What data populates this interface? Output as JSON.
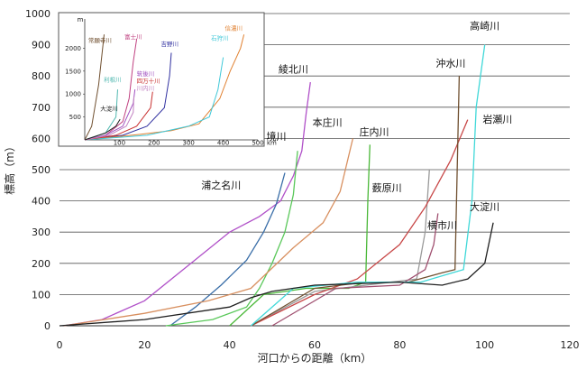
{
  "chart_data": [
    {
      "type": "line",
      "xlabel": "河口からの距離（km）",
      "ylabel": "標高（m）",
      "xlim": [
        0,
        120
      ],
      "ylim": [
        0,
        1000
      ],
      "xticks": [
        0,
        20,
        40,
        60,
        80,
        100,
        120
      ],
      "yticks": [
        0,
        100,
        200,
        300,
        400,
        500,
        600,
        700,
        800,
        900,
        1000
      ],
      "grid": "horizontal",
      "series": [
        {
          "name": "綾北川",
          "color": "#b050c8",
          "points": [
            [
              1,
              0
            ],
            [
              10,
              20
            ],
            [
              20,
              80
            ],
            [
              30,
              190
            ],
            [
              40,
              300
            ],
            [
              47,
              350
            ],
            [
              52,
              400
            ],
            [
              55,
              480
            ],
            [
              57,
              560
            ],
            [
              58,
              680
            ],
            [
              59,
              780
            ]
          ]
        },
        {
          "name": "浦之名川",
          "color": "#3a6ea8",
          "points": [
            [
              26,
              0
            ],
            [
              32,
              60
            ],
            [
              38,
              130
            ],
            [
              44,
              210
            ],
            [
              48,
              300
            ],
            [
              51,
              390
            ],
            [
              53,
              490
            ]
          ]
        },
        {
          "name": "境川",
          "color": "#5ac85a",
          "points": [
            [
              25,
              0
            ],
            [
              36,
              20
            ],
            [
              44,
              60
            ],
            [
              47,
              120
            ],
            [
              50,
              200
            ],
            [
              53,
              300
            ],
            [
              55,
              420
            ],
            [
              56,
              560
            ]
          ]
        },
        {
          "name": "本庄川",
          "color": "#d89060",
          "points": [
            [
              1,
              0
            ],
            [
              20,
              40
            ],
            [
              35,
              80
            ],
            [
              45,
              120
            ],
            [
              55,
              250
            ],
            [
              62,
              330
            ],
            [
              66,
              430
            ],
            [
              69,
              600
            ]
          ]
        },
        {
          "name": "庄内川",
          "color": "#4ab838",
          "points": [
            [
              40,
              0
            ],
            [
              48,
              100
            ],
            [
              58,
              120
            ],
            [
              68,
              120
            ],
            [
              72,
              140
            ],
            [
              72.5,
              400
            ],
            [
              73,
              580
            ]
          ]
        },
        {
          "name": "薮原川",
          "color": "#9a9a9a",
          "points": [
            [
              45,
              0
            ],
            [
              60,
              110
            ],
            [
              75,
              135
            ],
            [
              84,
              150
            ],
            [
              86,
              300
            ],
            [
              87,
              500
            ]
          ]
        },
        {
          "name": "横市川",
          "color": "#a05070",
          "points": [
            [
              50,
              0
            ],
            [
              65,
              120
            ],
            [
              80,
              130
            ],
            [
              86,
              180
            ],
            [
              88,
              260
            ],
            [
              89,
              360
            ]
          ]
        },
        {
          "name": "岩瀬川",
          "color": "#c84848",
          "points": [
            [
              45,
              0
            ],
            [
              60,
              100
            ],
            [
              70,
              150
            ],
            [
              80,
              260
            ],
            [
              86,
              380
            ],
            [
              92,
              530
            ],
            [
              96,
              660
            ]
          ]
        },
        {
          "name": "沖水川",
          "color": "#705030",
          "points": [
            [
              45,
              0
            ],
            [
              60,
              120
            ],
            [
              72,
              140
            ],
            [
              82,
              140
            ],
            [
              90,
              170
            ],
            [
              93,
              180
            ],
            [
              94,
              800
            ]
          ]
        },
        {
          "name": "高崎川",
          "color": "#40d8d8",
          "points": [
            [
              45,
              0
            ],
            [
              55,
              120
            ],
            [
              70,
              140
            ],
            [
              85,
              140
            ],
            [
              95,
              180
            ],
            [
              97,
              400
            ],
            [
              98,
              700
            ],
            [
              100,
              900
            ]
          ]
        },
        {
          "name": "大淀川",
          "color": "#202020",
          "points": [
            [
              0,
              0
            ],
            [
              20,
              20
            ],
            [
              40,
              60
            ],
            [
              45,
              90
            ],
            [
              50,
              110
            ],
            [
              60,
              130
            ],
            [
              80,
              140
            ],
            [
              90,
              130
            ],
            [
              96,
              150
            ],
            [
              100,
              200
            ],
            [
              102,
              330
            ]
          ]
        }
      ],
      "labels": [
        {
          "text": "高崎川",
          "x": 100,
          "y": 950
        },
        {
          "text": "沖水川",
          "x": 92,
          "y": 830
        },
        {
          "text": "綾北川",
          "x": 55,
          "y": 810
        },
        {
          "text": "岩瀬川",
          "x": 103,
          "y": 650
        },
        {
          "text": "本庄川",
          "x": 63,
          "y": 640
        },
        {
          "text": "庄内川",
          "x": 74,
          "y": 610
        },
        {
          "text": "境川",
          "x": 51,
          "y": 595
        },
        {
          "text": "浦之名川",
          "x": 38,
          "y": 440
        },
        {
          "text": "薮原川",
          "x": 77,
          "y": 430
        },
        {
          "text": "大淀川",
          "x": 100,
          "y": 370
        },
        {
          "text": "横市川",
          "x": 90,
          "y": 310
        }
      ]
    },
    {
      "type": "line",
      "title": "m",
      "xlabel": "km",
      "xlim": [
        0,
        500
      ],
      "ylim": [
        0,
        2500
      ],
      "xticks": [
        100,
        200,
        300,
        400,
        500
      ],
      "yticks": [
        500,
        1000,
        1500,
        2000
      ],
      "series": [
        {
          "name": "常願寺川",
          "color": "#705030",
          "points": [
            [
              0,
              0
            ],
            [
              20,
              300
            ],
            [
              40,
              1200
            ],
            [
              56,
              2300
            ]
          ]
        },
        {
          "name": "富士川",
          "color": "#c04080",
          "points": [
            [
              0,
              0
            ],
            [
              60,
              100
            ],
            [
              110,
              400
            ],
            [
              128,
              900
            ],
            [
              140,
              1700
            ],
            [
              150,
              2200
            ]
          ]
        },
        {
          "name": "吉野川",
          "color": "#3030a0",
          "points": [
            [
              0,
              0
            ],
            [
              110,
              100
            ],
            [
              180,
              300
            ],
            [
              230,
              700
            ],
            [
              245,
              1400
            ],
            [
              250,
              1900
            ]
          ]
        },
        {
          "name": "信濃川",
          "color": "#e08030",
          "points": [
            [
              0,
              0
            ],
            [
              160,
              120
            ],
            [
              250,
              200
            ],
            [
              330,
              350
            ],
            [
              390,
              900
            ],
            [
              420,
              1500
            ],
            [
              450,
              2000
            ],
            [
              460,
              2300
            ]
          ]
        },
        {
          "name": "石狩川",
          "color": "#40c8d8",
          "points": [
            [
              0,
              0
            ],
            [
              180,
              100
            ],
            [
              300,
              300
            ],
            [
              360,
              500
            ],
            [
              385,
              1100
            ],
            [
              400,
              1800
            ]
          ]
        },
        {
          "name": "利根川",
          "color": "#50b8b0",
          "points": [
            [
              0,
              0
            ],
            [
              60,
              150
            ],
            [
              90,
              500
            ],
            [
              95,
              1100
            ]
          ]
        },
        {
          "name": "筑後川",
          "color": "#a050c0",
          "points": [
            [
              0,
              0
            ],
            [
              60,
              100
            ],
            [
              110,
              300
            ],
            [
              140,
              800
            ],
            [
              145,
              1100
            ]
          ]
        },
        {
          "name": "四万十川",
          "color": "#c83030",
          "points": [
            [
              0,
              0
            ],
            [
              90,
              100
            ],
            [
              150,
              300
            ],
            [
              190,
              700
            ],
            [
              196,
              1050
            ]
          ]
        },
        {
          "name": "川内川",
          "color": "#c080c0",
          "points": [
            [
              0,
              0
            ],
            [
              70,
              100
            ],
            [
              120,
              300
            ],
            [
              140,
              600
            ],
            [
              142,
              950
            ]
          ]
        },
        {
          "name": "大淀川",
          "color": "#202020",
          "points": [
            [
              0,
              0
            ],
            [
              60,
              150
            ],
            [
              90,
              300
            ],
            [
              102,
              450
            ]
          ]
        }
      ],
      "labels": [
        {
          "text": "常願寺川",
          "x": 10,
          "y": 2130,
          "color": "#705030"
        },
        {
          "text": "富士川",
          "x": 115,
          "y": 2200,
          "color": "#c04080"
        },
        {
          "text": "吉野川",
          "x": 220,
          "y": 2050,
          "color": "#3030a0"
        },
        {
          "text": "信濃川",
          "x": 405,
          "y": 2390,
          "color": "#e08030"
        },
        {
          "text": "石狩川",
          "x": 365,
          "y": 2180,
          "color": "#40c8d8"
        },
        {
          "text": "利根川",
          "x": 55,
          "y": 1270,
          "color": "#50b8b0"
        },
        {
          "text": "筑後川",
          "x": 150,
          "y": 1400,
          "color": "#a050c0"
        },
        {
          "text": "四万十川",
          "x": 150,
          "y": 1240,
          "color": "#c83030"
        },
        {
          "text": "川内川",
          "x": 150,
          "y": 1080,
          "color": "#c080c0"
        },
        {
          "text": "大淀川",
          "x": 45,
          "y": 640,
          "color": "#202020"
        }
      ]
    }
  ]
}
